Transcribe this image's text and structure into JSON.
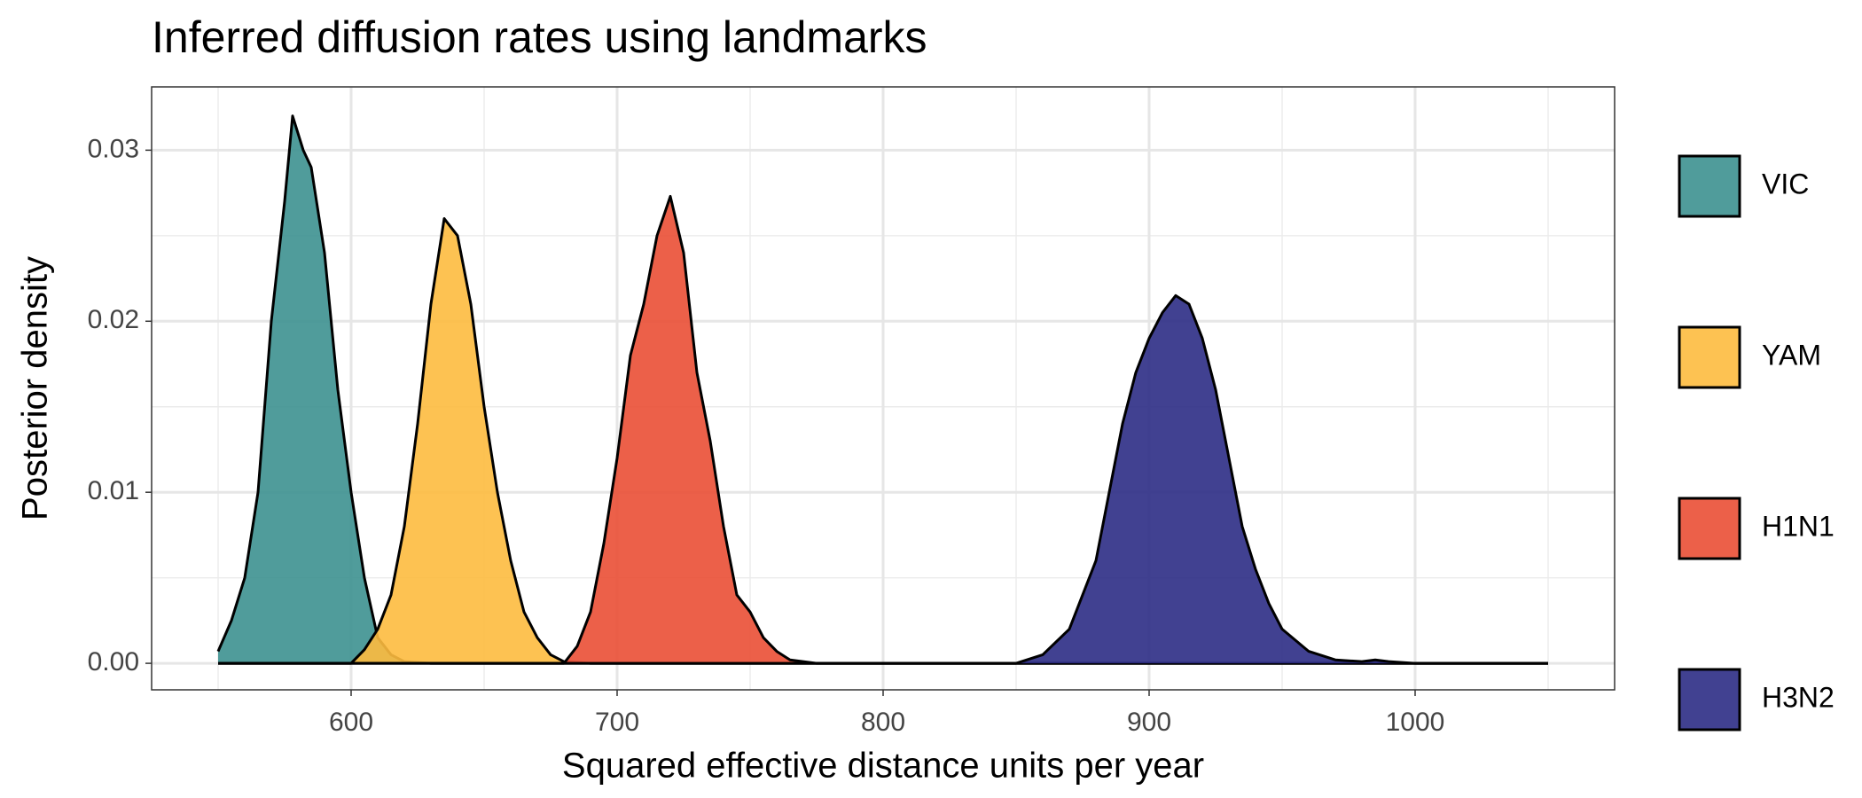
{
  "chart_data": {
    "type": "density",
    "title": "Inferred diffusion rates using landmarks",
    "x_label": "Squared effective distance units per year",
    "y_label": "Posterior density",
    "xlim": [
      525,
      1075
    ],
    "ylim": [
      -0.00155,
      0.0337
    ],
    "xticks": [
      600,
      700,
      800,
      900,
      1000
    ],
    "yticks": [
      {
        "value": 0,
        "label": "0.00"
      },
      0.01,
      0.02,
      0.03
    ],
    "grid": true,
    "legend": "right",
    "series": [
      {
        "name": "VIC",
        "color": "#3d9190",
        "x": [
          550,
          555,
          560,
          565,
          570,
          575,
          578,
          582,
          585,
          590,
          595,
          600,
          605,
          610,
          615,
          620,
          630,
          1050
        ],
        "values": [
          0.0007,
          0.0025,
          0.005,
          0.01,
          0.02,
          0.027,
          0.032,
          0.03,
          0.029,
          0.024,
          0.016,
          0.01,
          0.005,
          0.0015,
          0.0005,
          0.0001,
          0,
          0
        ]
      },
      {
        "name": "YAM",
        "color": "#fdbb3f",
        "x": [
          550,
          600,
          605,
          610,
          615,
          620,
          625,
          630,
          635,
          640,
          645,
          650,
          655,
          660,
          665,
          670,
          675,
          680,
          690,
          1050
        ],
        "values": [
          0,
          0,
          0.0008,
          0.002,
          0.004,
          0.008,
          0.014,
          0.021,
          0.026,
          0.025,
          0.021,
          0.015,
          0.01,
          0.006,
          0.003,
          0.0015,
          0.0005,
          0.0001,
          0,
          0
        ]
      },
      {
        "name": "H1N1",
        "color": "#ea4f35",
        "x": [
          550,
          680,
          685,
          690,
          695,
          700,
          705,
          710,
          715,
          720,
          725,
          730,
          735,
          740,
          745,
          750,
          755,
          760,
          765,
          775,
          1050
        ],
        "values": [
          0,
          0,
          0.001,
          0.003,
          0.007,
          0.012,
          0.018,
          0.021,
          0.025,
          0.0273,
          0.024,
          0.017,
          0.013,
          0.008,
          0.004,
          0.003,
          0.0015,
          0.0007,
          0.0002,
          0,
          0
        ]
      },
      {
        "name": "H3N2",
        "color": "#2c2c85",
        "x": [
          550,
          850,
          860,
          870,
          875,
          880,
          885,
          890,
          895,
          900,
          905,
          910,
          915,
          920,
          925,
          930,
          935,
          940,
          945,
          950,
          960,
          970,
          980,
          985,
          990,
          1000,
          1050
        ],
        "values": [
          0,
          0,
          0.0005,
          0.002,
          0.004,
          0.006,
          0.01,
          0.014,
          0.017,
          0.019,
          0.0205,
          0.0215,
          0.021,
          0.019,
          0.016,
          0.012,
          0.008,
          0.0055,
          0.0035,
          0.002,
          0.0007,
          0.0002,
          0.0001,
          0.0002,
          0.0001,
          0,
          0
        ]
      }
    ]
  }
}
